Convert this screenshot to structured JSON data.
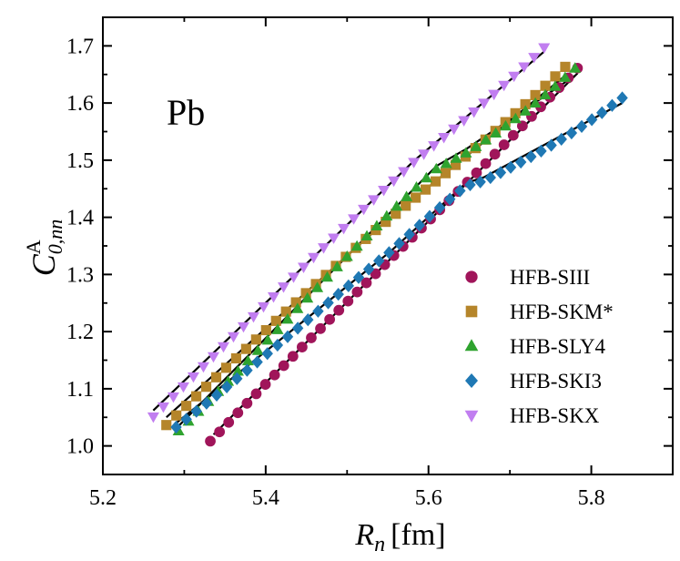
{
  "chart_data": {
    "type": "scatter",
    "title": "",
    "annotation": "Pb",
    "xlabel": {
      "main": "R",
      "sub": "n",
      "unit": "[fm]"
    },
    "ylabel": {
      "main": "C",
      "sup": "A",
      "sub": "0,nn"
    },
    "xlim": [
      5.2,
      5.9
    ],
    "ylim": [
      0.95,
      1.75
    ],
    "xticks": [
      5.2,
      5.4,
      5.6,
      5.8
    ],
    "xtick_labels": [
      "5.2",
      "5.4",
      "5.6",
      "5.8"
    ],
    "yticks": [
      1.0,
      1.1,
      1.2,
      1.3,
      1.4,
      1.5,
      1.6,
      1.7
    ],
    "ytick_labels": [
      "1.0",
      "1.1",
      "1.2",
      "1.3",
      "1.4",
      "1.5",
      "1.6",
      "1.7"
    ],
    "grid": false,
    "legend_position": "lower-right",
    "series": [
      {
        "name": "HFB-SIII",
        "marker": "circle",
        "color": "#a0155a",
        "x_start": 5.332,
        "x_end": 5.783,
        "y_start": 1.007,
        "y_end": 1.662,
        "n_points": 41,
        "fit": [
          [
            5.336,
            1.02
          ],
          [
            5.783,
            1.652
          ]
        ]
      },
      {
        "name": "HFB-SKM*",
        "marker": "square",
        "color": "#b5852a",
        "x_start": 5.278,
        "x_end": 5.768,
        "y_start": 1.035,
        "y_end": 1.665,
        "n_points": 41,
        "fit": [
          [
            5.278,
            1.05
          ],
          [
            5.537,
            1.38
          ],
          [
            5.768,
            1.648
          ]
        ]
      },
      {
        "name": "HFB-SLY4",
        "marker": "triangle-up",
        "color": "#2fa32f",
        "x_start": 5.293,
        "x_end": 5.78,
        "y_start": 1.025,
        "y_end": 1.662,
        "n_points": 41,
        "fit": [
          [
            5.293,
            1.035
          ],
          [
            5.61,
            1.49
          ],
          [
            5.647,
            1.52
          ],
          [
            5.78,
            1.648
          ]
        ]
      },
      {
        "name": "HFB-SKI3",
        "marker": "diamond",
        "color": "#1f78b4",
        "x_start": 5.29,
        "x_end": 5.838,
        "y_start": 1.032,
        "y_end": 1.61,
        "n_points": 45,
        "fit": [
          [
            5.29,
            1.04
          ],
          [
            5.553,
            1.34
          ],
          [
            5.646,
            1.46
          ],
          [
            5.668,
            1.47
          ],
          [
            5.838,
            1.6
          ]
        ]
      },
      {
        "name": "HFB-SKX",
        "marker": "triangle-down",
        "color": "#c17ef0",
        "x_start": 5.262,
        "x_end": 5.742,
        "y_start": 1.05,
        "y_end": 1.698,
        "n_points": 40,
        "fit": [
          [
            5.262,
            1.062
          ],
          [
            5.583,
            1.5
          ],
          [
            5.742,
            1.69
          ]
        ]
      }
    ]
  }
}
